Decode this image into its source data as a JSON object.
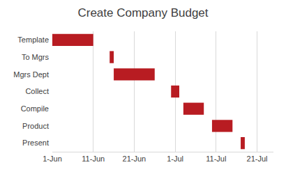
{
  "chart_data": {
    "type": "bar",
    "orientation": "horizontal",
    "title": "Create Company Budget",
    "categories": [
      "Template",
      "To Mgrs",
      "Mgrs Dept",
      "Collect",
      "Compile",
      "Product",
      "Present"
    ],
    "start": [
      1,
      15,
      16,
      30,
      33,
      40,
      47
    ],
    "values": [
      10,
      1,
      10,
      2,
      5,
      5,
      1
    ],
    "color": "#b81c22",
    "xlim": [
      1,
      55
    ],
    "xticks": [
      {
        "value": 1,
        "label": "1-Jun"
      },
      {
        "value": 11,
        "label": "11-Jun"
      },
      {
        "value": 21,
        "label": "21-Jun"
      },
      {
        "value": 31,
        "label": "1-Jul"
      },
      {
        "value": 41,
        "label": "11-Jul"
      },
      {
        "value": 51,
        "label": "21-Jul"
      }
    ],
    "grid": true
  }
}
